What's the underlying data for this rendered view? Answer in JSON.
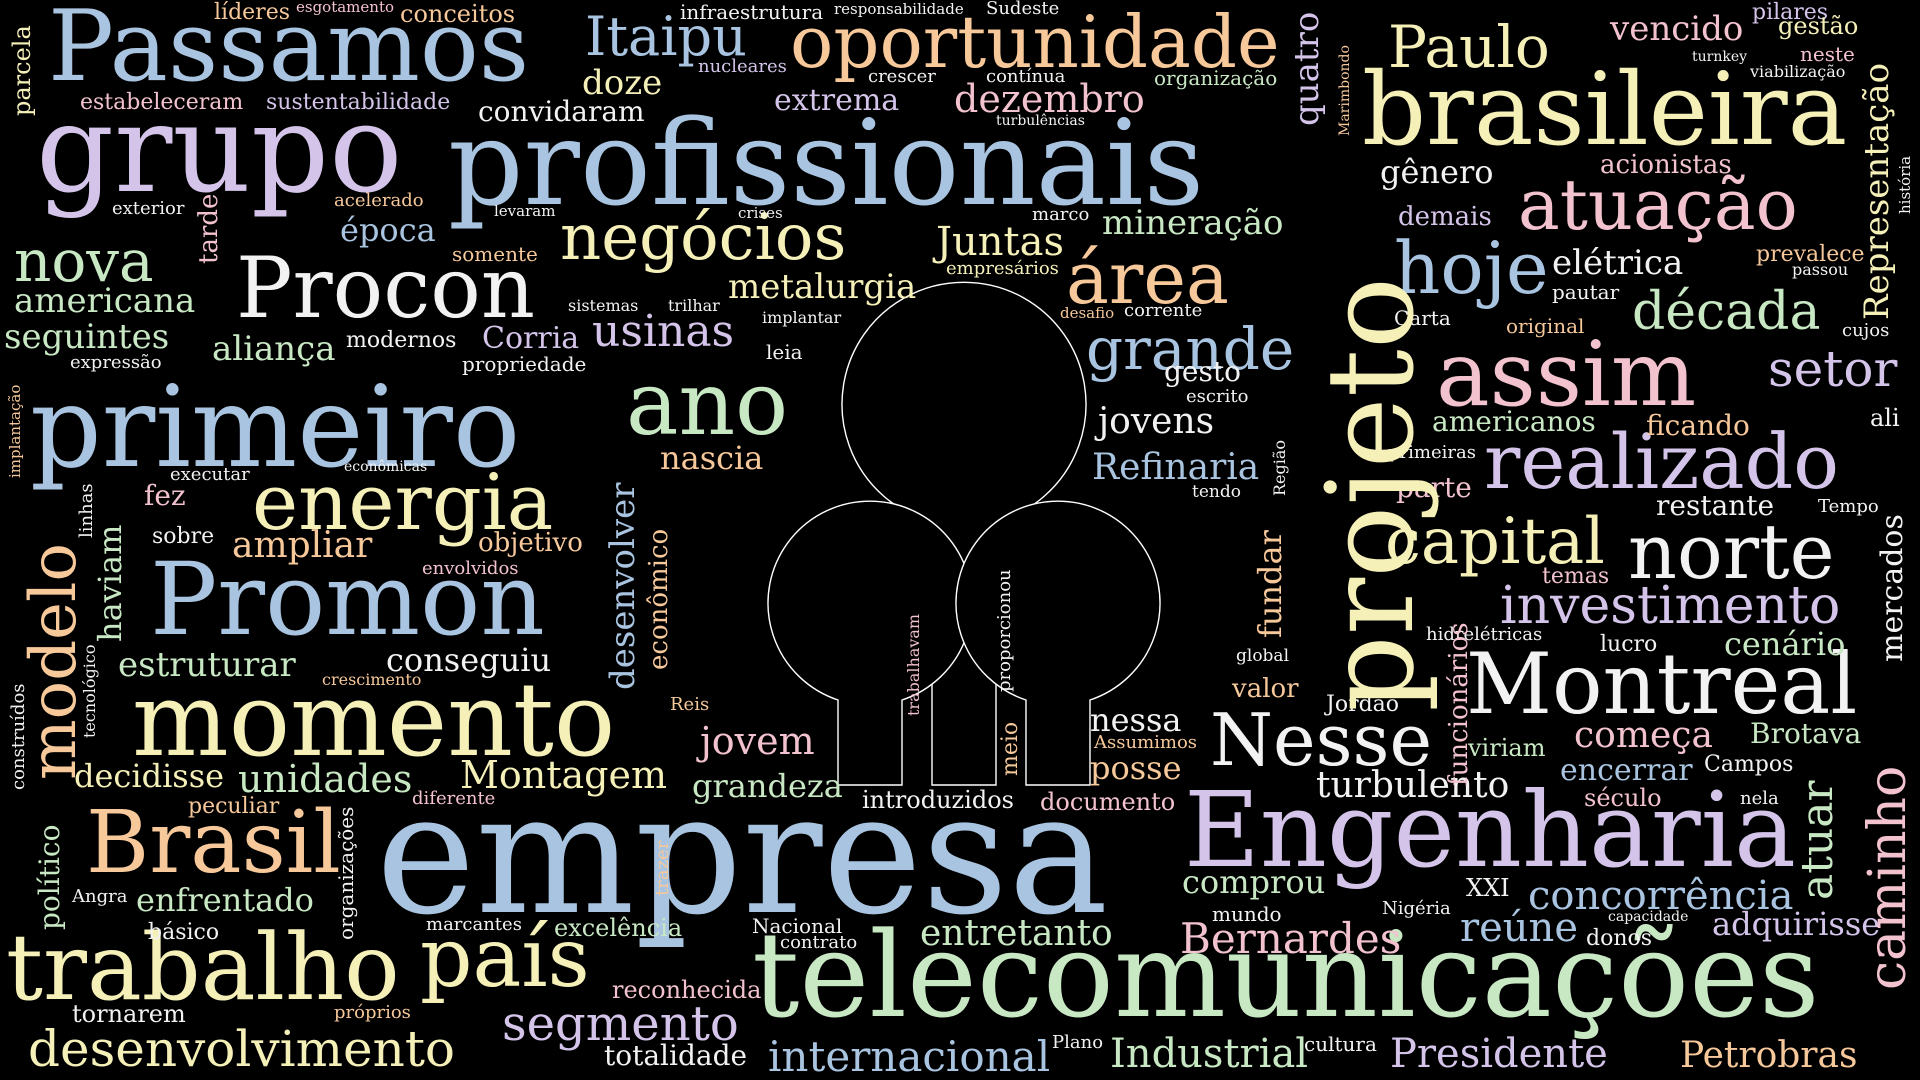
{
  "colors": {
    "background": "#000000",
    "blue": "#a9c4e0",
    "lavender": "#d4c4ea",
    "cream": "#f5f0b8",
    "green": "#c8e8c4",
    "peach": "#f6c89a",
    "pink": "#f2c2ce",
    "white": "#f2f2f2",
    "logo_stroke": "#ffffff"
  },
  "words": {
    "passamos": "Passamos",
    "grupo": "grupo",
    "profissionais": "profissionais",
    "brasileira": "brasileira",
    "empresa": "empresa",
    "telecomunicacoes": "telecomunicações",
    "engenharia": "Engenharia",
    "projeto": "projeto",
    "primeiro": "primeiro",
    "promon": "Promon",
    "momento": "momento",
    "trabalho": "trabalho",
    "brasil": "Brasil",
    "procon": "Procon",
    "negocios": "negócios",
    "energia": "energia",
    "ano": "ano",
    "modelo": "modelo",
    "montreal": "Montreal",
    "assim": "assim",
    "realizado": "realizado",
    "norte": "norte",
    "capital": "capital",
    "investimento": "investimento",
    "nesse": "Nesse",
    "area": "área",
    "atuacao": "atuação",
    "hoje": "hoje",
    "nova": "nova",
    "pais": "país",
    "oportunidade": "oportunidade",
    "itaipu": "Itaipu",
    "paulo": "Paulo",
    "desenvolvimento": "desenvolvimento",
    "segmento": "segmento",
    "internacional": "internacional",
    "industrial": "Industrial",
    "presidente": "Presidente",
    "petrobras": "Petrobras",
    "bernardes": "Bernardes",
    "grande": "grande",
    "decada": "década",
    "setor": "setor",
    "caminho": "caminho",
    "atuar": "atuar",
    "concorrencia": "concorrência",
    "comeca": "começa",
    "entretanto": "entretanto",
    "adquirisse": "adquirisse",
    "reune": "reúne",
    "americana": "americana",
    "seguintes": "seguintes",
    "alianca": "aliança",
    "usinas": "usinas",
    "metalurgia": "metalurgia",
    "juntas": "Juntas",
    "mineracao": "mineração",
    "dezembro": "dezembro",
    "extrema": "extrema",
    "doze": "doze",
    "convidaram": "convidaram",
    "lideres": "líderes",
    "esgotamento": "esgotamento",
    "conceitos": "conceitos",
    "infraestrutura": "infraestrutura",
    "responsabilidade": "responsabilidade",
    "sudeste": "Sudeste",
    "pilares": "pilares",
    "vencido": "vencido",
    "gestao": "gestão",
    "neste": "neste",
    "turnkey": "turnkey",
    "viabilizacao": "viabilização",
    "parcela": "parcela",
    "estabeleceram": "estabeleceram",
    "sustentabilidade": "sustentabilidade",
    "nucleares": "nucleares",
    "crescer": "crescer",
    "continua": "contínua",
    "organizacao": "organização",
    "turbulencias": "turbulências",
    "quatro": "quatro",
    "marimbondo": "Marimbondo",
    "representacao": "Representação",
    "historia": "história",
    "acionistas": "acionistas",
    "genero": "gênero",
    "demais": "demais",
    "exterior": "exterior",
    "acelerado": "acelerado",
    "epoca": "época",
    "levaram": "levaram",
    "crises": "crises",
    "marco": "marco",
    "tarde": "tarde",
    "somente": "somente",
    "empresarios": "empresários",
    "eletrica": "elétrica",
    "prevalece": "prevalece",
    "passou": "passou",
    "pautar": "pautar",
    "carta": "Carta",
    "original": "original",
    "cujos": "cujos",
    "sistemas": "sistemas",
    "trilhar": "trilhar",
    "implantar": "implantar",
    "desafio": "desafio",
    "corrente": "corrente",
    "gesto": "gesto",
    "escrito": "escrito",
    "modernos": "modernos",
    "corria": "Corria",
    "leia": "leia",
    "expressao": "expressão",
    "propriedade": "propriedade",
    "implantacao": "implantação",
    "jovens": "jovens",
    "americanos": "americanos",
    "ficando": "ficando",
    "ali": "ali",
    "primeiras": "primeiras",
    "regiao": "Região",
    "refinaria": "Refinaria",
    "tendo": "tendo",
    "parte": "parte",
    "restante": "restante",
    "tempo": "Tempo",
    "executar": "executar",
    "economicas": "econômicas",
    "nascia": "nascia",
    "linhas": "linhas",
    "fez": "fez",
    "haviam": "haviam",
    "sobre": "sobre",
    "ampliar": "ampliar",
    "objetivo": "objetivo",
    "envolvidos": "envolvidos",
    "desenvolver": "desenvolver",
    "economico": "econômico",
    "mercados": "mercados",
    "temas": "temas",
    "fundar": "fundar",
    "funcionarios": "funcionários",
    "hidreletricas": "hidrelétricas",
    "lucro": "lucro",
    "cenario": "cenário",
    "tecnologico": "tecnológico",
    "estruturar": "estruturar",
    "conseguiu": "conseguiu",
    "crescimento": "crescimento",
    "global": "global",
    "valor": "valor",
    "jordao": "Jordão",
    "trabalhavam": "trabalhavam",
    "proporcionou": "proporcionou",
    "construidos": "construídos",
    "reis": "Reis",
    "jovem": "jovem",
    "nessa": "nessa",
    "assumimos": "Assumimos",
    "posse": "posse",
    "brotava": "Brotava",
    "viriam": "viriam",
    "encerrar": "encerrar",
    "campos": "Campos",
    "decidisse": "decidisse",
    "unidades": "unidades",
    "montagem": "Montagem",
    "meio": "meio",
    "grandeza": "grandeza",
    "turbulento": "turbulento",
    "seculo": "século",
    "nela": "nela",
    "politico": "político",
    "peculiar": "peculiar",
    "diferente": "diferente",
    "introduzidos": "introduzidos",
    "documento": "documento",
    "organizacoes": "organizações",
    "angra": "Angra",
    "enfrentado": "enfrentado",
    "trazer": "trazer",
    "comprou": "comprou",
    "xxi": "XXI",
    "basico": "básico",
    "marcantes": "marcantes",
    "excelencia": "excelência",
    "nacional": "Nacional",
    "contrato": "contrato",
    "mundo": "mundo",
    "nigeria": "Nigéria",
    "capacidade": "capacidade",
    "donos": "donos",
    "reconhecida": "reconhecida",
    "tornarem": "tornarem",
    "proprios": "próprios",
    "totalidade": "totalidade",
    "plano": "Plano",
    "cultura": "cultura"
  }
}
